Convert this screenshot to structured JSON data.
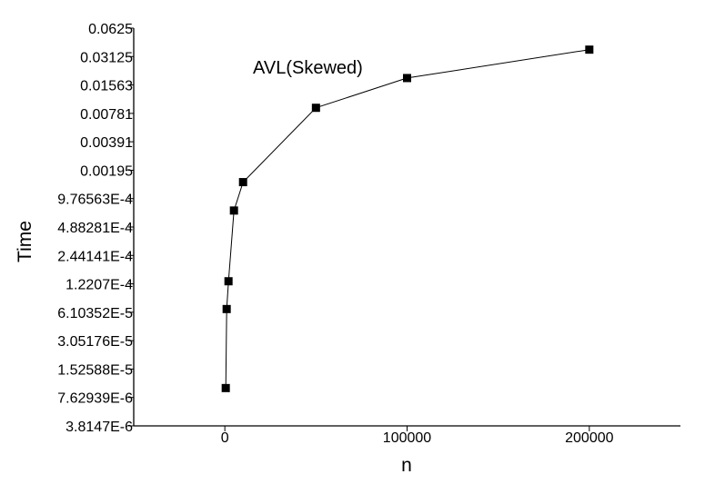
{
  "chart_data": {
    "type": "line",
    "title": "AVL(Skewed)",
    "xlabel": "n",
    "ylabel": "Time",
    "xlim": [
      -50000,
      250000
    ],
    "ylim": [
      3.8147e-06,
      0.0625
    ],
    "yscale": "log2",
    "grid": false,
    "x_ticks": [
      0,
      100000,
      200000
    ],
    "x_tick_labels": [
      "0",
      "100000",
      "200000"
    ],
    "y_ticks": [
      3.8147e-06,
      7.62939e-06,
      1.52588e-05,
      3.05176e-05,
      6.10352e-05,
      0.00012207,
      0.000244141,
      0.000488281,
      0.000976563,
      0.00195,
      0.00391,
      0.00781,
      0.01563,
      0.03125,
      0.0625
    ],
    "y_tick_labels": [
      "3.8147E-6",
      "7.62939E-6",
      "1.52588E-5",
      "3.05176E-5",
      "6.10352E-5",
      "1.2207E-4",
      "2.44141E-4",
      "4.88281E-4",
      "9.76563E-4",
      "0.00195",
      "0.00391",
      "0.00781",
      "0.01563",
      "0.03125",
      "0.0625"
    ],
    "series": [
      {
        "marker": "square",
        "color": "#000000",
        "x": [
          500,
          1000,
          2000,
          5000,
          10000,
          50000,
          100000,
          200000
        ],
        "y": [
          9.6e-06,
          6.6e-05,
          0.00013,
          0.00073,
          0.00146,
          0.00895,
          0.0185,
          0.037
        ]
      }
    ]
  }
}
